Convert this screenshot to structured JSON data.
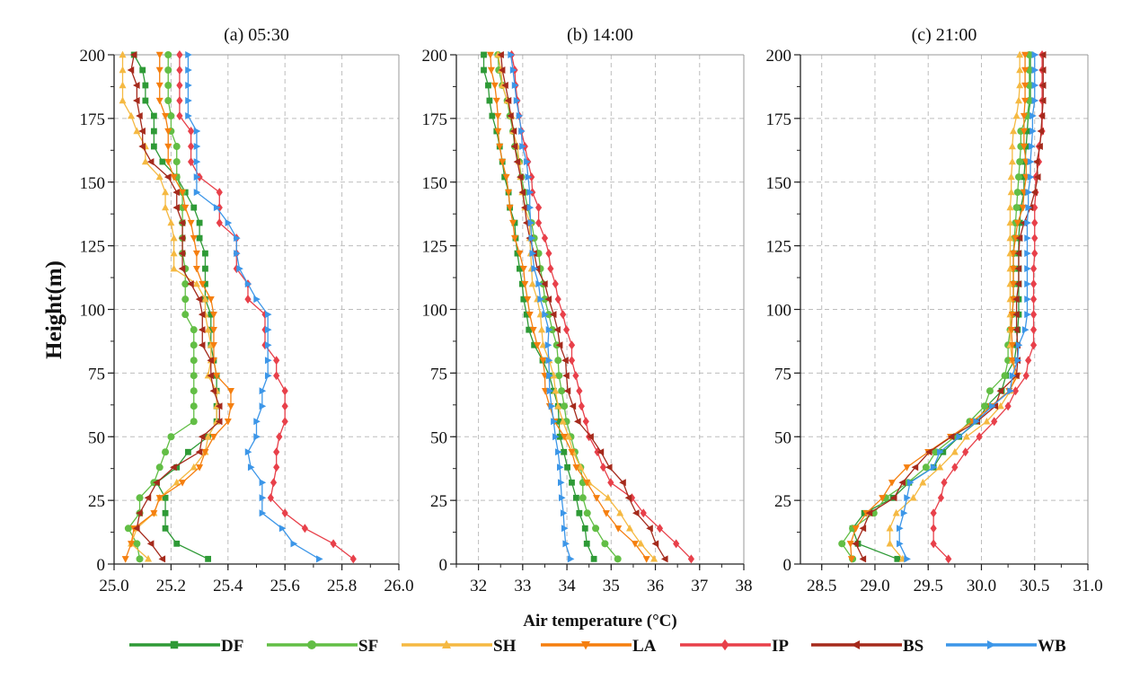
{
  "chart_data": {
    "type": "line",
    "xlabel": "Air temperature (°C)",
    "ylabel": "Height(m)",
    "ylim": [
      0,
      200
    ],
    "yticks": [
      "0",
      "25",
      "50",
      "75",
      "100",
      "125",
      "150",
      "175",
      "200"
    ],
    "grid": "on (dashed)",
    "legend_position": "bottom",
    "heights": [
      2,
      8,
      14,
      20,
      26,
      32,
      38,
      44,
      50,
      56,
      62,
      68,
      74,
      80,
      86,
      92,
      98,
      104,
      110,
      116,
      122,
      128,
      134,
      140,
      146,
      152,
      158,
      164,
      170,
      176,
      182,
      188,
      194,
      200
    ],
    "series_styles": [
      {
        "name": "DF",
        "color": "#2e9a36",
        "marker": "square"
      },
      {
        "name": "SF",
        "color": "#62be45",
        "marker": "circle"
      },
      {
        "name": "SH",
        "color": "#f5b942",
        "marker": "triangle-up"
      },
      {
        "name": "LA",
        "color": "#f57f0f",
        "marker": "triangle-down"
      },
      {
        "name": "IP",
        "color": "#e8404a",
        "marker": "diamond"
      },
      {
        "name": "BS",
        "color": "#a52a1c",
        "marker": "triangle-left"
      },
      {
        "name": "WB",
        "color": "#3c96e8",
        "marker": "triangle-right"
      }
    ],
    "panels": [
      {
        "title": "(a) 05:30",
        "xlim": [
          25.0,
          26.0
        ],
        "xticks": [
          "25.0",
          "25.2",
          "25.4",
          "25.6",
          "25.8",
          "26.0"
        ],
        "xminor_step": 0.1,
        "series": [
          {
            "name": "DF",
            "values": [
              25.33,
              25.22,
              25.18,
              25.18,
              25.18,
              25.15,
              25.22,
              25.26,
              25.33,
              25.36,
              25.36,
              25.36,
              25.36,
              25.35,
              25.34,
              25.34,
              25.34,
              25.32,
              25.32,
              25.32,
              25.32,
              25.3,
              25.3,
              25.28,
              25.25,
              25.22,
              25.17,
              25.14,
              25.14,
              25.14,
              25.11,
              25.11,
              25.1,
              25.07
            ]
          },
          {
            "name": "SF",
            "values": [
              25.09,
              25.08,
              25.05,
              25.09,
              25.09,
              25.14,
              25.16,
              25.18,
              25.2,
              25.28,
              25.28,
              25.28,
              25.28,
              25.28,
              25.28,
              25.28,
              25.25,
              25.25,
              25.25,
              25.25,
              25.24,
              25.24,
              25.24,
              25.24,
              25.24,
              25.22,
              25.22,
              25.22,
              25.2,
              25.2,
              25.19,
              25.19,
              25.19,
              25.19
            ]
          },
          {
            "name": "SH",
            "values": [
              25.12,
              25.06,
              25.08,
              25.14,
              25.16,
              25.22,
              25.28,
              25.32,
              25.33,
              25.36,
              25.36,
              25.36,
              25.33,
              25.34,
              25.34,
              25.33,
              25.32,
              25.32,
              25.29,
              25.21,
              25.21,
              25.21,
              25.2,
              25.18,
              25.18,
              25.16,
              25.11,
              25.11,
              25.08,
              25.06,
              25.03,
              25.03,
              25.03,
              25.03
            ]
          },
          {
            "name": "LA",
            "values": [
              25.04,
              25.06,
              25.07,
              25.14,
              25.16,
              25.24,
              25.3,
              25.32,
              25.35,
              25.4,
              25.41,
              25.41,
              25.36,
              25.35,
              25.35,
              25.35,
              25.35,
              25.34,
              25.31,
              25.29,
              25.29,
              25.28,
              25.27,
              25.25,
              25.24,
              25.21,
              25.19,
              25.19,
              25.19,
              25.18,
              25.16,
              25.16,
              25.16,
              25.16
            ]
          },
          {
            "name": "IP",
            "values": [
              25.84,
              25.77,
              25.67,
              25.6,
              25.55,
              25.56,
              25.57,
              25.57,
              25.58,
              25.6,
              25.6,
              25.6,
              25.57,
              25.57,
              25.53,
              25.53,
              25.53,
              25.47,
              25.47,
              25.43,
              25.43,
              25.43,
              25.37,
              25.37,
              25.37,
              25.3,
              25.27,
              25.27,
              25.27,
              25.23,
              25.23,
              25.23,
              25.23,
              25.23
            ]
          },
          {
            "name": "BS",
            "values": [
              25.17,
              25.13,
              25.08,
              25.09,
              25.12,
              25.15,
              25.21,
              25.3,
              25.31,
              25.37,
              25.37,
              25.35,
              25.34,
              25.34,
              25.31,
              25.31,
              25.31,
              25.3,
              25.27,
              25.24,
              25.24,
              25.24,
              25.24,
              25.22,
              25.22,
              25.19,
              25.13,
              25.1,
              25.1,
              25.09,
              25.08,
              25.08,
              25.06,
              25.07
            ]
          },
          {
            "name": "WB",
            "values": [
              25.72,
              25.63,
              25.59,
              25.52,
              25.52,
              25.52,
              25.48,
              25.47,
              25.5,
              25.5,
              25.52,
              25.52,
              25.54,
              25.54,
              25.54,
              25.54,
              25.54,
              25.5,
              25.47,
              25.44,
              25.43,
              25.43,
              25.4,
              25.36,
              25.29,
              25.29,
              25.29,
              25.29,
              25.29,
              25.26,
              25.26,
              25.26,
              25.26,
              25.26
            ]
          }
        ]
      },
      {
        "title": "(b) 14:00",
        "xlim": [
          31.5,
          38.0
        ],
        "xticks": [
          "32",
          "33",
          "34",
          "35",
          "36",
          "37",
          "38"
        ],
        "xminor_step": 0.5,
        "series": [
          {
            "name": "DF",
            "values": [
              34.61,
              34.45,
              34.41,
              34.28,
              34.21,
              34.11,
              34.01,
              33.93,
              33.84,
              33.82,
              33.8,
              33.7,
              33.6,
              33.45,
              33.26,
              33.14,
              33.09,
              33.02,
              32.99,
              32.93,
              32.88,
              32.84,
              32.82,
              32.71,
              32.68,
              32.59,
              32.54,
              32.48,
              32.41,
              32.31,
              32.25,
              32.22,
              32.12,
              32.12
            ]
          },
          {
            "name": "SF",
            "values": [
              35.15,
              34.86,
              34.65,
              34.46,
              34.36,
              34.36,
              34.31,
              34.18,
              34.09,
              33.99,
              33.94,
              33.88,
              33.82,
              33.8,
              33.77,
              33.67,
              33.59,
              33.5,
              33.46,
              33.4,
              33.36,
              33.26,
              33.2,
              33.11,
              33.04,
              32.97,
              32.92,
              32.82,
              32.78,
              32.71,
              32.65,
              32.54,
              32.46,
              32.44
            ]
          },
          {
            "name": "SH",
            "values": [
              35.97,
              35.67,
              35.42,
              35.2,
              34.93,
              34.5,
              34.31,
              34.14,
              34.04,
              33.91,
              33.8,
              33.74,
              33.7,
              33.6,
              33.46,
              33.43,
              33.4,
              33.33,
              33.22,
              33.2,
              33.18,
              33.16,
              33.16,
              33.05,
              32.99,
              32.95,
              32.92,
              32.88,
              32.78,
              32.75,
              32.65,
              32.54,
              32.51,
              32.44
            ]
          },
          {
            "name": "LA",
            "values": [
              35.8,
              35.54,
              35.16,
              34.89,
              34.67,
              34.45,
              34.21,
              34.11,
              33.94,
              33.72,
              33.61,
              33.51,
              33.5,
              33.46,
              33.33,
              33.24,
              33.16,
              33.11,
              33.05,
              33.02,
              32.93,
              32.82,
              32.78,
              32.71,
              32.68,
              32.63,
              32.54,
              32.48,
              32.44,
              32.44,
              32.41,
              32.37,
              32.29,
              32.27
            ]
          },
          {
            "name": "IP",
            "values": [
              36.81,
              36.47,
              36.1,
              35.73,
              35.47,
              34.99,
              34.82,
              34.69,
              34.5,
              34.43,
              34.33,
              34.28,
              34.2,
              34.11,
              34.11,
              33.99,
              33.91,
              33.8,
              33.74,
              33.63,
              33.59,
              33.5,
              33.36,
              33.36,
              33.22,
              33.2,
              33.12,
              33.05,
              32.97,
              32.92,
              32.88,
              32.84,
              32.82,
              32.75
            ]
          },
          {
            "name": "BS",
            "values": [
              36.22,
              36.01,
              35.88,
              35.57,
              35.4,
              35.27,
              34.96,
              34.77,
              34.54,
              34.25,
              34.14,
              34.02,
              33.99,
              33.97,
              33.84,
              33.79,
              33.7,
              33.59,
              33.5,
              33.33,
              33.26,
              33.16,
              33.09,
              33.05,
              33.0,
              32.95,
              32.88,
              32.82,
              32.8,
              32.73,
              32.68,
              32.61,
              32.54,
              32.51
            ]
          },
          {
            "name": "WB",
            "values": [
              34.08,
              33.97,
              33.94,
              33.92,
              33.88,
              33.86,
              33.84,
              33.8,
              33.74,
              33.7,
              33.65,
              33.61,
              33.6,
              33.59,
              33.57,
              33.59,
              33.5,
              33.4,
              33.36,
              33.26,
              33.22,
              33.2,
              33.18,
              33.16,
              33.16,
              33.12,
              33.09,
              32.99,
              32.97,
              32.92,
              32.86,
              32.82,
              32.78,
              32.73
            ]
          }
        ]
      },
      {
        "title": "(c) 21:00",
        "xlim": [
          28.3,
          31.0
        ],
        "xticks": [
          "28.5",
          "29.0",
          "29.5",
          "30.0",
          "30.5",
          "31.0"
        ],
        "xminor_step": 0.25,
        "series": [
          {
            "name": "DF",
            "values": [
              29.21,
              28.84,
              28.79,
              28.9,
              29.17,
              29.32,
              29.55,
              29.64,
              29.79,
              29.96,
              30.05,
              30.19,
              30.23,
              30.31,
              30.33,
              30.34,
              30.35,
              30.35,
              30.35,
              30.35,
              30.35,
              30.35,
              30.36,
              30.37,
              30.4,
              30.4,
              30.41,
              30.42,
              30.43,
              30.44,
              30.46,
              30.46,
              30.46,
              30.46
            ]
          },
          {
            "name": "SF",
            "values": [
              28.79,
              28.69,
              28.79,
              28.99,
              29.1,
              29.31,
              29.48,
              29.57,
              29.75,
              29.89,
              30.03,
              30.08,
              30.22,
              30.25,
              30.25,
              30.27,
              30.29,
              30.3,
              30.3,
              30.3,
              30.3,
              30.31,
              30.32,
              30.33,
              30.34,
              30.35,
              30.36,
              30.37,
              30.37,
              30.43,
              30.45,
              30.45,
              30.45,
              30.45
            ]
          },
          {
            "name": "SH",
            "values": [
              29.26,
              29.14,
              29.14,
              29.2,
              29.36,
              29.45,
              29.61,
              29.75,
              29.86,
              30.05,
              30.18,
              30.27,
              30.32,
              30.29,
              30.27,
              30.27,
              30.27,
              30.27,
              30.27,
              30.27,
              30.27,
              30.27,
              30.27,
              30.27,
              30.28,
              30.28,
              30.29,
              30.29,
              30.3,
              30.33,
              30.35,
              30.36,
              30.36,
              30.36
            ]
          },
          {
            "name": "LA",
            "values": [
              28.78,
              28.77,
              28.82,
              28.92,
              29.07,
              29.16,
              29.3,
              29.5,
              29.71,
              29.92,
              30.09,
              30.26,
              30.34,
              30.29,
              30.29,
              30.28,
              30.29,
              30.3,
              30.3,
              30.3,
              30.3,
              30.32,
              30.34,
              30.39,
              30.4,
              30.42,
              30.42,
              30.4,
              30.4,
              30.4,
              30.41,
              30.41,
              30.41,
              30.41
            ]
          },
          {
            "name": "IP",
            "values": [
              29.69,
              29.55,
              29.55,
              29.55,
              29.62,
              29.65,
              29.75,
              29.85,
              29.98,
              30.12,
              30.25,
              30.32,
              30.42,
              30.44,
              30.49,
              30.49,
              30.49,
              30.49,
              30.49,
              30.49,
              30.5,
              30.5,
              30.5,
              30.5,
              30.51,
              30.51,
              30.54,
              30.54,
              30.57,
              30.57,
              30.57,
              30.57,
              30.57,
              30.57
            ]
          },
          {
            "name": "BS",
            "values": [
              28.89,
              28.82,
              28.89,
              28.95,
              29.18,
              29.26,
              29.38,
              29.51,
              29.72,
              29.96,
              30.13,
              30.18,
              30.33,
              30.34,
              30.34,
              30.33,
              30.33,
              30.33,
              30.35,
              30.35,
              30.35,
              30.36,
              30.4,
              30.46,
              30.5,
              30.53,
              30.52,
              30.55,
              30.56,
              30.57,
              30.58,
              30.58,
              30.58,
              30.58
            ]
          },
          {
            "name": "WB",
            "values": [
              29.3,
              29.23,
              29.23,
              29.27,
              29.3,
              29.33,
              29.55,
              29.61,
              29.79,
              29.95,
              30.1,
              30.27,
              30.29,
              30.34,
              30.35,
              30.41,
              30.43,
              30.43,
              30.43,
              30.43,
              30.43,
              30.43,
              30.43,
              30.44,
              30.44,
              30.46,
              30.46,
              30.47,
              30.48,
              30.48,
              30.5,
              30.5,
              30.5,
              30.5
            ]
          }
        ]
      }
    ]
  }
}
